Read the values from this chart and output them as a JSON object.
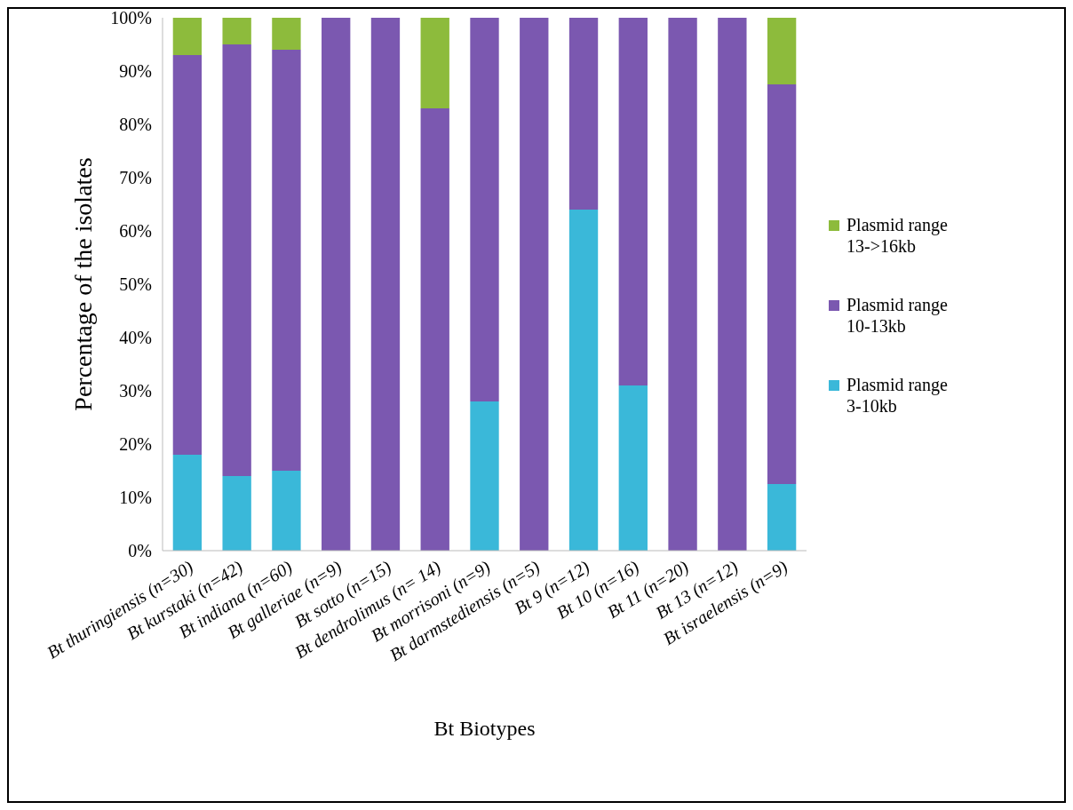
{
  "chart_data": {
    "type": "bar",
    "stacked": true,
    "xlabel": "Bt Biotypes",
    "ylabel": "Percentage of the isolates",
    "categories": [
      "Bt thuringiensis (n=30)",
      "Bt kurstaki (n=42)",
      "Bt indiana (n=60)",
      "Bt galleriae (n=9)",
      "Bt sotto (n=15)",
      "Bt dendrolimus (n= 14)",
      "Bt morrisoni (n=9)",
      "Bt darmstediensis (n=5)",
      "Bt 9 (n=12)",
      "Bt 10 (n=16)",
      "Bt 11 (n=20)",
      "Bt 13 (n=12)",
      "Bt  israelensis (n=9)"
    ],
    "series": [
      {
        "name": "Plasmid range 3-10kb",
        "color": "#3ab8d9",
        "values": [
          18,
          14,
          15,
          0,
          0,
          0,
          28,
          0,
          64,
          31,
          0,
          0,
          12.5
        ]
      },
      {
        "name": "Plasmid range 10-13kb",
        "color": "#7b58b0",
        "values": [
          75,
          81,
          79,
          100,
          100,
          83,
          72,
          100,
          36,
          69,
          100,
          100,
          75
        ]
      },
      {
        "name": "Plasmid range 13->16kb",
        "color": "#8dbb3c",
        "values": [
          7,
          5,
          6,
          0,
          0,
          17,
          0,
          0,
          0,
          0,
          0,
          0,
          12.5
        ]
      }
    ],
    "ylim": [
      0,
      100
    ],
    "yticks": [
      {
        "value": 0,
        "label": "0%"
      },
      {
        "value": 10,
        "label": "10%"
      },
      {
        "value": 20,
        "label": "20%"
      },
      {
        "value": 30,
        "label": "30%"
      },
      {
        "value": 40,
        "label": "40%"
      },
      {
        "value": 50,
        "label": "50%"
      },
      {
        "value": 60,
        "label": "60%"
      },
      {
        "value": 70,
        "label": "70%"
      },
      {
        "value": 80,
        "label": "80%"
      },
      {
        "value": 90,
        "label": "90%"
      },
      {
        "value": 100,
        "label": "100%"
      }
    ],
    "grid": false,
    "legend": "right"
  }
}
